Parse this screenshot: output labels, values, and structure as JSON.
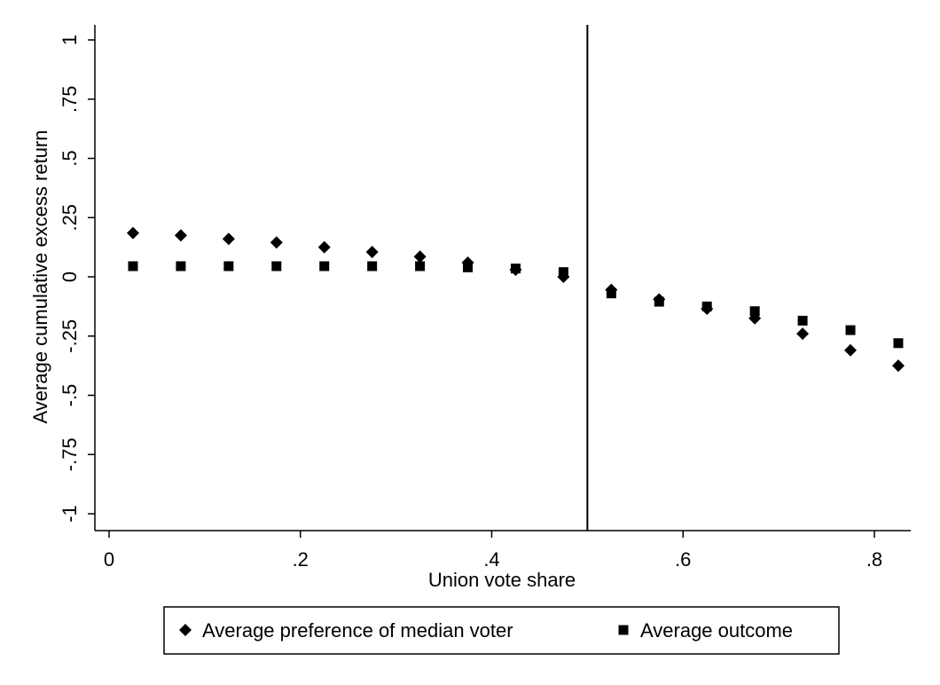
{
  "chart_data": {
    "type": "scatter",
    "xlabel": "Union vote share",
    "ylabel": "Average cumulative excess return",
    "xlim": [
      0,
      0.83
    ],
    "ylim": [
      -1,
      1
    ],
    "x_ticks": [
      {
        "value": 0,
        "label": "0"
      },
      {
        "value": 0.2,
        "label": ".2"
      },
      {
        "value": 0.4,
        "label": ".4"
      },
      {
        "value": 0.6,
        "label": ".6"
      },
      {
        "value": 0.8,
        "label": ".8"
      }
    ],
    "y_ticks": [
      {
        "value": 1,
        "label": "1"
      },
      {
        "value": 0.75,
        "label": ".75"
      },
      {
        "value": 0.5,
        "label": ".5"
      },
      {
        "value": 0.25,
        "label": ".25"
      },
      {
        "value": 0,
        "label": "0"
      },
      {
        "value": -0.25,
        "label": "-.25"
      },
      {
        "value": -0.5,
        "label": "-.5"
      },
      {
        "value": -0.75,
        "label": "-.75"
      },
      {
        "value": -1,
        "label": "-1"
      }
    ],
    "vertical_line_x": 0.5,
    "grid": false,
    "legend_position": "bottom",
    "series": [
      {
        "name": "Average preference of median voter",
        "marker": "diamond",
        "x": [
          0.025,
          0.075,
          0.125,
          0.175,
          0.225,
          0.275,
          0.325,
          0.375,
          0.425,
          0.475,
          0.525,
          0.575,
          0.625,
          0.675,
          0.725,
          0.775,
          0.825
        ],
        "y": [
          0.185,
          0.175,
          0.16,
          0.145,
          0.125,
          0.105,
          0.085,
          0.06,
          0.03,
          0.0,
          -0.055,
          -0.095,
          -0.135,
          -0.175,
          -0.24,
          -0.31,
          -0.375
        ]
      },
      {
        "name": "Average outcome",
        "marker": "square",
        "x": [
          0.025,
          0.075,
          0.125,
          0.175,
          0.225,
          0.275,
          0.325,
          0.375,
          0.425,
          0.475,
          0.525,
          0.575,
          0.625,
          0.675,
          0.725,
          0.775,
          0.825
        ],
        "y": [
          0.045,
          0.045,
          0.045,
          0.045,
          0.045,
          0.045,
          0.045,
          0.04,
          0.035,
          0.02,
          -0.07,
          -0.105,
          -0.125,
          -0.145,
          -0.185,
          -0.225,
          -0.28
        ]
      }
    ]
  }
}
